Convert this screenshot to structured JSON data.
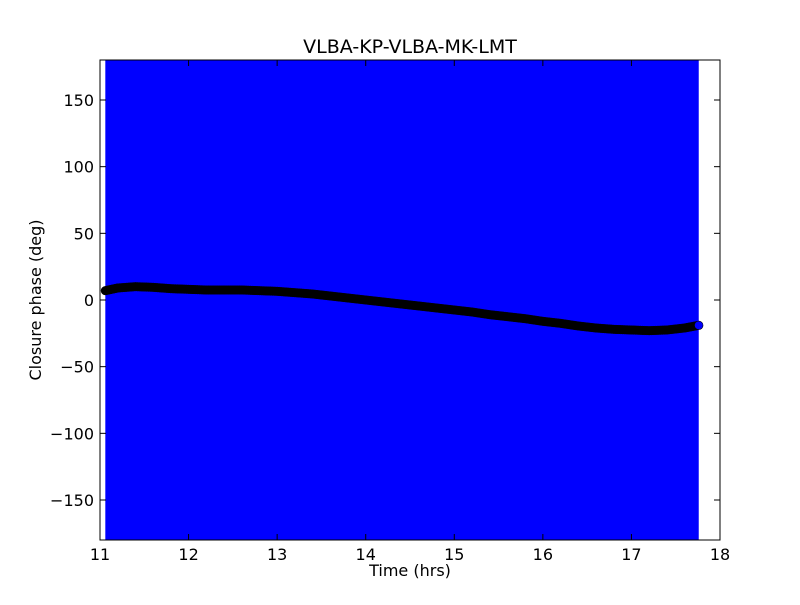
{
  "colors": {
    "band": "#0000ff",
    "marker_fill": "#000000",
    "last_marker_fill": "#0000ff",
    "axes": "#000000",
    "background": "#ffffff"
  },
  "chart_data": {
    "type": "scatter",
    "title": "VLBA-KP-VLBA-MK-LMT",
    "xlabel": "Time (hrs)",
    "ylabel": "Closure phase (deg)",
    "xlim": [
      11,
      18
    ],
    "ylim": [
      -180,
      180
    ],
    "grid": false,
    "legend": "none",
    "x_ticks": [
      11,
      12,
      13,
      14,
      15,
      16,
      17,
      18
    ],
    "x_tick_labels": [
      "11",
      "12",
      "13",
      "14",
      "15",
      "16",
      "17",
      "18"
    ],
    "y_ticks": [
      -150,
      -100,
      -50,
      0,
      50,
      100,
      150
    ],
    "y_tick_labels": [
      "−150",
      "−100",
      "−50",
      "0",
      "50",
      "100",
      "150"
    ],
    "error_band": {
      "x_range": [
        11.06,
        17.76
      ],
      "y_range": [
        -180,
        180
      ]
    },
    "series": [
      {
        "x": [
          11.06,
          11.2,
          11.4,
          11.6,
          11.8,
          12.0,
          12.2,
          12.4,
          12.6,
          12.8,
          13.0,
          13.2,
          13.4,
          13.6,
          13.8,
          14.0,
          14.2,
          14.4,
          14.6,
          14.8,
          15.0,
          15.2,
          15.4,
          15.6,
          15.8,
          16.0,
          16.2,
          16.4,
          16.6,
          16.8,
          17.0,
          17.2,
          17.4,
          17.6,
          17.76
        ],
        "y": [
          7,
          9,
          10,
          9.5,
          8.5,
          8,
          7.5,
          7.5,
          7.5,
          7,
          6.5,
          5.5,
          4.5,
          3,
          1.5,
          0,
          -1.5,
          -3,
          -4.5,
          -6,
          -7.5,
          -9,
          -11,
          -12.5,
          -14,
          -16,
          -17.5,
          -19.5,
          -21,
          -22,
          -22.5,
          -23,
          -22.5,
          -21,
          -19
        ]
      }
    ]
  }
}
